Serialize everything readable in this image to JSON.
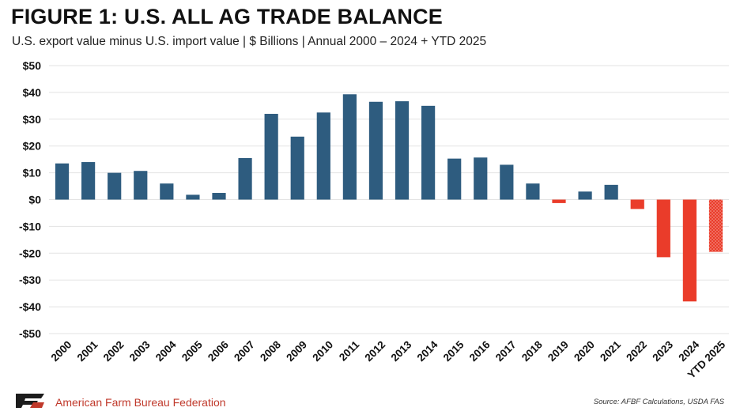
{
  "header": {
    "title": "FIGURE 1: U.S. ALL AG TRADE BALANCE",
    "subtitle": "U.S. export value minus U.S. import value | $ Billions | Annual 2000 – 2024 + YTD 2025"
  },
  "footer": {
    "organization": "American Farm Bureau Federation",
    "source": "Source: AFBF Calculations, USDA FAS"
  },
  "colors": {
    "positive": "#2e5c7f",
    "negative": "#ea3c2a",
    "grid": "#e3e3e3"
  },
  "chart_data": {
    "type": "bar",
    "categories": [
      "2000",
      "2001",
      "2002",
      "2003",
      "2004",
      "2005",
      "2006",
      "2007",
      "2008",
      "2009",
      "2010",
      "2011",
      "2012",
      "2013",
      "2014",
      "2015",
      "2016",
      "2017",
      "2018",
      "2019",
      "2020",
      "2021",
      "2022",
      "2023",
      "2024",
      "YTD 2025"
    ],
    "values": [
      13.5,
      14,
      10,
      10.7,
      6,
      1.8,
      2.5,
      15.5,
      32,
      23.5,
      32.5,
      39.3,
      36.5,
      36.7,
      35,
      15.3,
      15.7,
      13,
      6,
      -1.3,
      3,
      5.5,
      -3.5,
      -21.5,
      -38,
      -19.5
    ],
    "ylim": [
      -50,
      50
    ],
    "yticks": [
      50,
      40,
      30,
      20,
      10,
      0,
      -10,
      -20,
      -30,
      -40,
      -50
    ],
    "ytick_labels": [
      "$50",
      "$40",
      "$30",
      "$20",
      "$10",
      "$0",
      "-$10",
      "-$20",
      "-$30",
      "-$40",
      "-$50"
    ],
    "hatched_categories": [
      "YTD 2025"
    ],
    "grid": true
  }
}
